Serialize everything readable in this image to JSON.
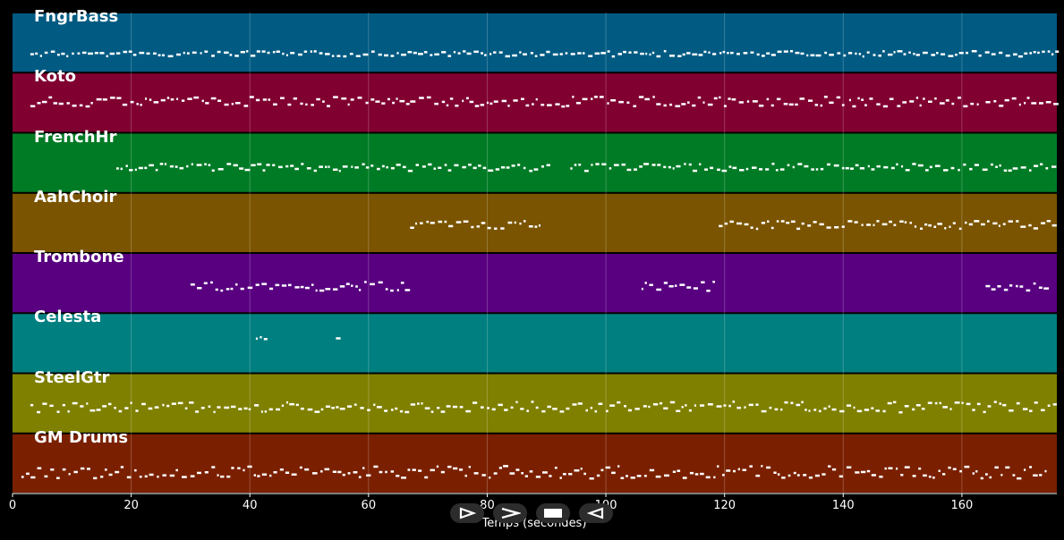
{
  "chart_data": {
    "type": "piano-roll",
    "xlabel": "Temps (secondes)",
    "xlim": [
      0,
      176
    ],
    "xticks": [
      0,
      20,
      40,
      60,
      80,
      100,
      120,
      140,
      160
    ],
    "grid": true,
    "tracks": [
      {
        "name": "FngrBass",
        "color": "#005a82",
        "segments": [
          [
            3,
            176
          ]
        ],
        "pitch_range": [
          56,
          62
        ]
      },
      {
        "name": "Koto",
        "color": "#800030",
        "segments": [
          [
            3,
            40.5
          ],
          [
            41,
            59
          ],
          [
            59.5,
            67
          ],
          [
            67,
            76.5
          ],
          [
            77,
            95
          ],
          [
            95,
            118.5
          ],
          [
            119,
            140
          ],
          [
            141,
            163
          ],
          [
            164,
            176
          ]
        ],
        "pitch_range": [
          107,
          118
        ]
      },
      {
        "name": "FrenchHr",
        "color": "#007b25",
        "segments": [
          [
            17.5,
            90
          ],
          [
            94,
            176
          ]
        ],
        "pitch_range": [
          182,
          190
        ]
      },
      {
        "name": "AahChoir",
        "color": "#7a5400",
        "segments": [
          [
            67,
            89
          ],
          [
            119,
            176
          ]
        ],
        "pitch_range": [
          246,
          255
        ]
      },
      {
        "name": "Trombone",
        "color": "#580080",
        "segments": [
          [
            30,
            67
          ],
          [
            106,
            118.5
          ],
          [
            164,
            174
          ]
        ],
        "pitch_range": [
          314,
          324
        ]
      },
      {
        "name": "Celesta",
        "color": "#007f80",
        "segments": [
          [
            41,
            42.5
          ],
          [
            54.5,
            55.5
          ]
        ],
        "pitch_range": [
          374,
          378
        ]
      },
      {
        "name": "SteelGtr",
        "color": "#7f8000",
        "segments": [
          [
            3,
            176
          ]
        ],
        "pitch_range": [
          448,
          460
        ]
      },
      {
        "name": "GM Drums",
        "color": "#7a2000",
        "segments": [
          [
            1.5,
            174
          ]
        ],
        "pitch_range": [
          520,
          534
        ]
      }
    ]
  },
  "controls": [
    {
      "name": "play-outline-button",
      "icon": "play-outline-icon"
    },
    {
      "name": "next-button",
      "icon": "chevron-right-icon"
    },
    {
      "name": "stop-button",
      "icon": "stop-icon"
    },
    {
      "name": "back-button",
      "icon": "play-reverse-outline-icon"
    }
  ]
}
